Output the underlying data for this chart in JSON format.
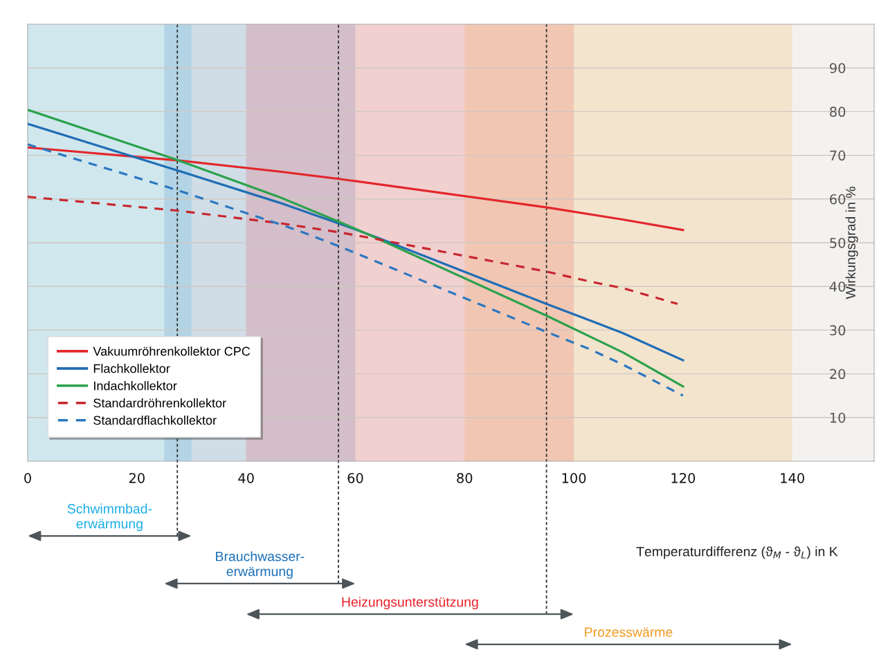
{
  "chart_data": {
    "type": "line",
    "xlabel": "Temperaturdifferenz (ϑ$_{M}$ - ϑ$_{L}$) in K",
    "ylabel": "Wirkungsgrad in %",
    "xlim": [
      0,
      155
    ],
    "xticks": [
      0,
      20,
      40,
      60,
      80,
      100,
      120,
      140
    ],
    "ylim": [
      0,
      100
    ],
    "yticks": [
      10,
      20,
      30,
      40,
      50,
      60,
      70,
      80,
      90
    ],
    "grid": "y",
    "legend": "bottom left",
    "series": [
      {
        "name": "Vakuumröhrenkollektor CPC",
        "color": "#e3262b",
        "line_style": "solid",
        "x": [
          0,
          27,
          46,
          57,
          95,
          109,
          120
        ],
        "values": [
          71.8,
          68.9,
          66.3,
          64.6,
          58.1,
          55.3,
          52.9
        ]
      },
      {
        "name": "Flachkollektor",
        "color": "#1f6db5",
        "line_style": "solid",
        "x": [
          0,
          27,
          46,
          57,
          64,
          95,
          103,
          109,
          120
        ],
        "values": [
          77.2,
          66.7,
          59.2,
          54.4,
          51.2,
          36.0,
          32.2,
          29.3,
          23.1
        ]
      },
      {
        "name": "Indachkollektor",
        "color": "#2aa14b",
        "line_style": "solid",
        "x": [
          0,
          27,
          46,
          57,
          64,
          95,
          103,
          109,
          120
        ],
        "values": [
          80.4,
          69.1,
          60.5,
          54.8,
          51.0,
          33.3,
          28.5,
          24.9,
          17.1
        ]
      },
      {
        "name": "Standardröhrenkollektor",
        "color": "#c8262e",
        "line_style": "dashed",
        "x": [
          0,
          27,
          46,
          57,
          64,
          95,
          103,
          109,
          119
        ],
        "values": [
          60.5,
          57.4,
          54.5,
          52.4,
          50.8,
          43.4,
          41.1,
          39.6,
          36.0
        ]
      },
      {
        "name": "Standardflachkollektor",
        "color": "#2b77c0",
        "line_style": "dashed",
        "x": [
          0,
          27,
          46,
          51,
          57,
          95,
          103,
          109,
          120
        ],
        "values": [
          72.5,
          62.2,
          54.3,
          52.1,
          49.2,
          29.6,
          25.6,
          22.1,
          15.0
        ]
      }
    ],
    "ref_lines": [
      {
        "axis": "x",
        "value": 27.4,
        "color": "#333333",
        "line_style": "dashed"
      },
      {
        "axis": "x",
        "value": 56.9,
        "color": "#333333",
        "line_style": "dashed"
      },
      {
        "axis": "x",
        "value": 95,
        "color": "#333333",
        "line_style": "dashed"
      }
    ],
    "bands": [
      {
        "axis": "x",
        "from": 0,
        "to": 30,
        "label": "Schwimmbad-\nerwärmung",
        "color": "#19aee6"
      },
      {
        "axis": "x",
        "from": 25,
        "to": 60,
        "label": "Brauchwasser-\nerwärmung",
        "color": "#1a6fb9"
      },
      {
        "axis": "x",
        "from": 40,
        "to": 100,
        "label": "Heizungsunterstützung",
        "color": "#e8202a"
      },
      {
        "axis": "x",
        "from": 80,
        "to": 140,
        "label": "Prozesswärme",
        "color": "#f39a1e"
      }
    ]
  }
}
